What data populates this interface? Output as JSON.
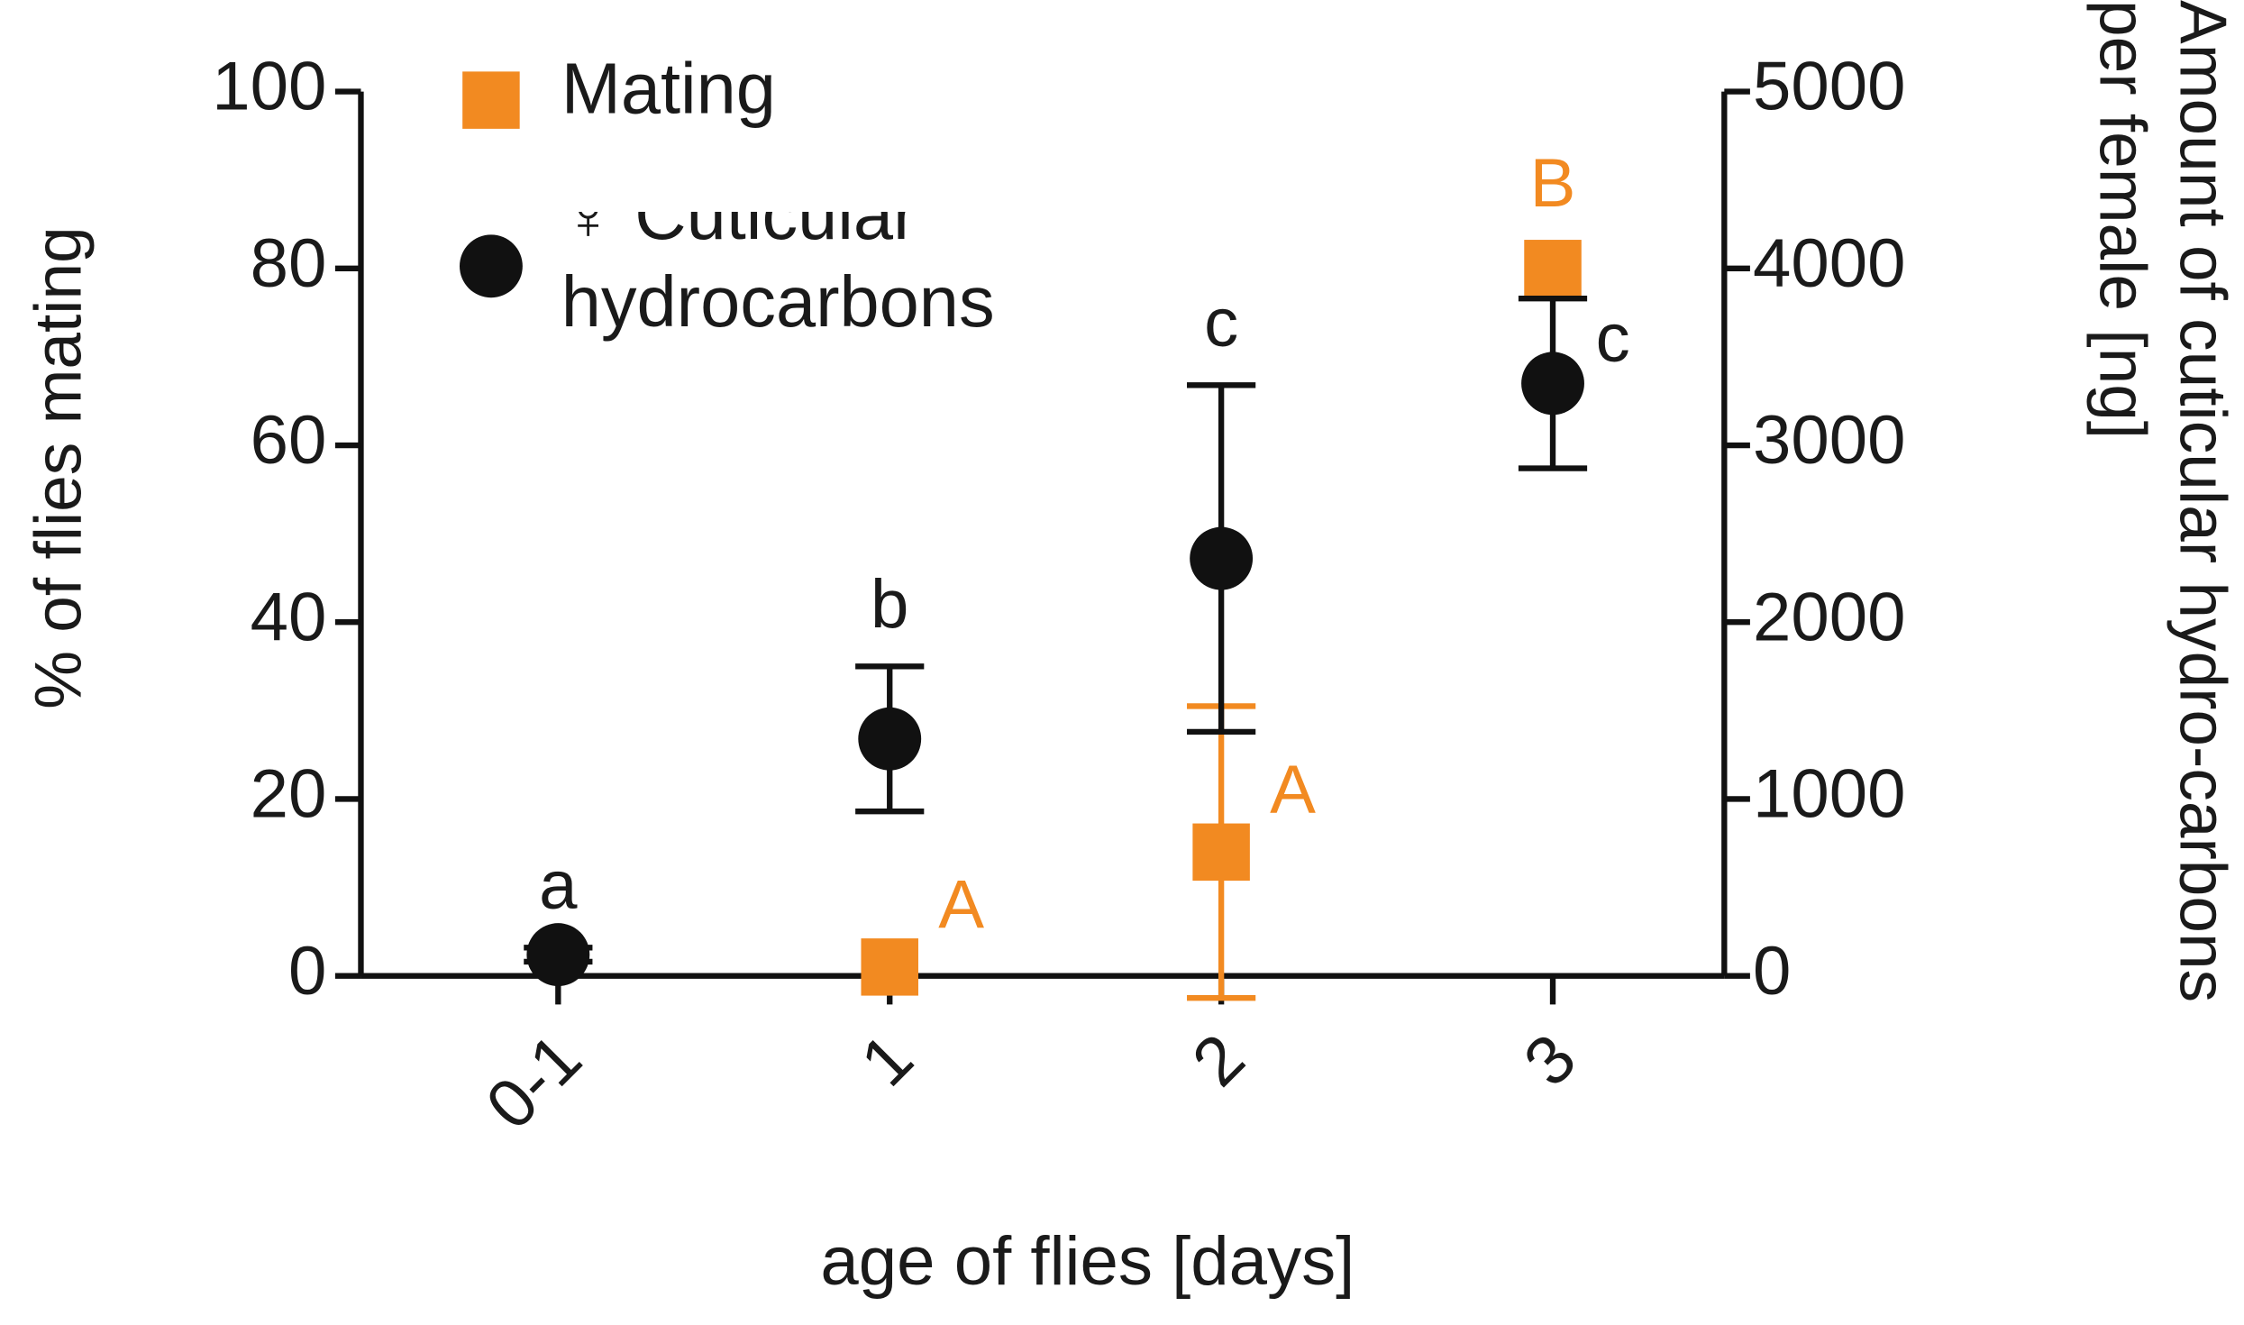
{
  "chart_data": {
    "type": "dual-axis-scatter-errorbar",
    "xlabel": "age of flies [days]",
    "ylabel": "% of flies mating",
    "y2label": "Amount of cuticular  hydro-carbons per female [ng]",
    "categories": [
      "0-1",
      "1",
      "2",
      "3"
    ],
    "ylim": [
      0,
      100
    ],
    "yticks": [
      0,
      20,
      40,
      60,
      80,
      100
    ],
    "y2lim": [
      0,
      5000
    ],
    "y2ticks": [
      0,
      1000,
      2000,
      3000,
      4000,
      5000
    ],
    "legend": "top-left",
    "series": [
      {
        "name": "Mating",
        "color": "#f28a21",
        "marker": "square",
        "values": [
          null,
          1,
          14,
          80
        ],
        "errors": [
          null,
          null,
          16.5,
          null
        ],
        "letters": [
          null,
          "A",
          "A",
          "B"
        ]
      },
      {
        "name": "♀ Cuticular hydrocarbons",
        "color": "#111111",
        "marker": "circle",
        "axis": "y2",
        "values": [
          120,
          1340,
          2360,
          3350
        ],
        "errors": [
          40,
          410,
          980,
          480
        ],
        "letters": [
          "a",
          "b",
          "c",
          "c"
        ]
      }
    ]
  }
}
